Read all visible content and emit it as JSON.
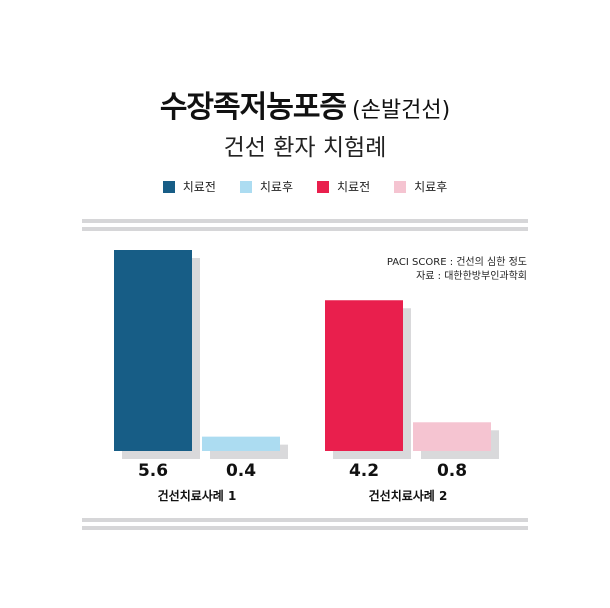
{
  "title": "수장족저농포증",
  "title_paren": "(손발건선)",
  "subtitle": "건선 환자 치험례",
  "legend": [
    {
      "label": "치료전",
      "color": "#175d86"
    },
    {
      "label": "치료후",
      "color": "#acdcf1"
    },
    {
      "label": "치료전",
      "color": "#e91f4d"
    },
    {
      "label": "치료후",
      "color": "#f5c4d1"
    }
  ],
  "notes": {
    "line1": "PACI SCORE : 건선의 심한 정도",
    "line2": "자료 : 대한한방부인과학회"
  },
  "chart_data": {
    "type": "bar",
    "title": "수장족저농포증 (손발건선)",
    "subtitle": "건선 환자 치험례",
    "groups": [
      {
        "label": "건선치료사례 1",
        "bars": [
          {
            "name": "치료전",
            "value": 5.6,
            "label": "5.6",
            "color": "#175d86"
          },
          {
            "name": "치료후",
            "value": 0.4,
            "label": "0.4",
            "color": "#acdcf1"
          }
        ]
      },
      {
        "label": "건선치료사례 2",
        "bars": [
          {
            "name": "치료전",
            "value": 4.2,
            "label": "4.2",
            "color": "#e91f4d"
          },
          {
            "name": "치료후",
            "value": 0.8,
            "label": "0.8",
            "color": "#f5c4d1"
          }
        ]
      }
    ],
    "ylim": [
      0,
      5.6
    ],
    "grid": false,
    "legend_position": "top"
  }
}
